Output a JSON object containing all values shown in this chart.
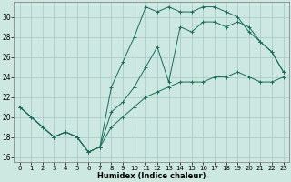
{
  "xlabel": "Humidex (Indice chaleur)",
  "bg_color": "#cce8e0",
  "grid_color": "#aacccc",
  "line_color": "#1a6b5a",
  "xlim": [
    -0.5,
    23.5
  ],
  "ylim": [
    15.5,
    31.5
  ],
  "xticks": [
    0,
    1,
    2,
    3,
    4,
    5,
    6,
    7,
    8,
    9,
    10,
    11,
    12,
    13,
    14,
    15,
    16,
    17,
    18,
    19,
    20,
    21,
    22,
    23
  ],
  "yticks": [
    16,
    18,
    20,
    22,
    24,
    26,
    28,
    30
  ],
  "line1_x": [
    0,
    1,
    2,
    3,
    4,
    5,
    6,
    7,
    8,
    9,
    10,
    11,
    12,
    13,
    14,
    15,
    16,
    17,
    18,
    19,
    20,
    21,
    22,
    23
  ],
  "line1_y": [
    21,
    20,
    19,
    18,
    18.5,
    18,
    16.5,
    17,
    23,
    25.5,
    28,
    31,
    30.5,
    31,
    30.5,
    30.5,
    31,
    31,
    30.5,
    30,
    28.5,
    27.5,
    26.5,
    24.5
  ],
  "line2_x": [
    0,
    1,
    2,
    3,
    4,
    5,
    6,
    7,
    8,
    9,
    10,
    11,
    12,
    13,
    14,
    15,
    16,
    17,
    18,
    19,
    20,
    21,
    22,
    23
  ],
  "line2_y": [
    21,
    20,
    19,
    18,
    18.5,
    18,
    16.5,
    17,
    20.5,
    21.5,
    23,
    25,
    27,
    23.5,
    29,
    28.5,
    29.5,
    29.5,
    29,
    29.5,
    29,
    27.5,
    26.5,
    24.5
  ],
  "line3_x": [
    0,
    1,
    2,
    3,
    4,
    5,
    6,
    7,
    8,
    9,
    10,
    11,
    12,
    13,
    14,
    15,
    16,
    17,
    18,
    19,
    20,
    21,
    22,
    23
  ],
  "line3_y": [
    21,
    20,
    19,
    18,
    18.5,
    18,
    16.5,
    17,
    19,
    20,
    21,
    22,
    22.5,
    23,
    23.5,
    23.5,
    23.5,
    24,
    24,
    24.5,
    24,
    23.5,
    23.5,
    24
  ],
  "xtick_fontsize": 5,
  "ytick_fontsize": 5.5,
  "xlabel_fontsize": 6
}
